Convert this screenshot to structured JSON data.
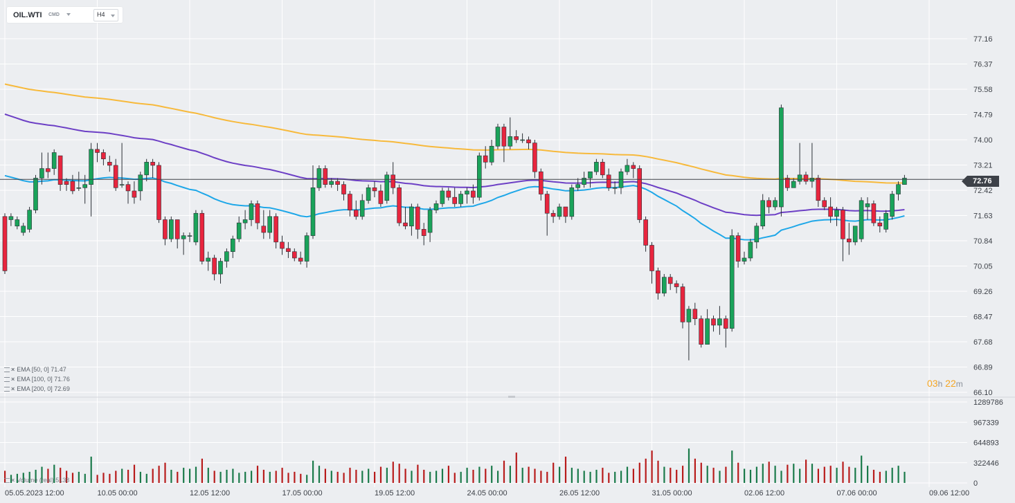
{
  "instrument": {
    "symbol": "OIL.WTI",
    "asset_class": "CMD",
    "timeframe": "H4"
  },
  "last_price": "72.76",
  "countdown": {
    "hours": "03",
    "h": "h",
    "minutes": "22",
    "m": "m"
  },
  "indicators": [
    {
      "label": "EMA [50, 0] 71.47",
      "color": "#1ea7e8",
      "period": 50,
      "value": 71.47
    },
    {
      "label": "EMA [100, 0] 71.76",
      "color": "#6c3fc5",
      "period": 100,
      "value": 71.76
    },
    {
      "label": "EMA [200, 0] 72.69",
      "color": "#f7b93b",
      "period": 200,
      "value": 72.69
    }
  ],
  "volume_label": "Volume (real)  5138",
  "colors": {
    "up": "#1aa35a",
    "down": "#e8253e",
    "ema50": "#1ea7e8",
    "ema100": "#6c3fc5",
    "ema200": "#f7b93b",
    "vol_up": "#1a7a4a",
    "vol_down": "#b81b1b",
    "price_line": "#3d4148"
  },
  "chart_data": {
    "type": "candlestick",
    "x_ticks": [
      "05.05.2023  12:00",
      "10.05  00:00",
      "12.05  12:00",
      "17.05  00:00",
      "19.05  12:00",
      "24.05  00:00",
      "26.05  12:00",
      "31.05  00:00",
      "02.06  12:00",
      "07.06  00:00",
      "09.06  12:00"
    ],
    "x_tick_index": [
      0,
      15,
      30,
      45,
      60,
      75,
      90,
      105,
      120,
      135,
      150
    ],
    "y_ticks": [
      "77.16",
      "76.37",
      "75.58",
      "74.79",
      "74.00",
      "73.21",
      "72.42",
      "71.63",
      "70.84",
      "70.05",
      "69.26",
      "68.47",
      "67.68",
      "66.89",
      "66.10"
    ],
    "ylim": [
      66.1,
      77.16
    ],
    "volume_ticks": [
      "1289786",
      "967339",
      "644893",
      "322446",
      "0"
    ],
    "volume_ylim": [
      0,
      1289786
    ],
    "candles": [
      [
        71.6,
        69.9,
        71.7,
        69.8
      ],
      [
        71.5,
        71.6,
        71.7,
        71.3
      ],
      [
        71.3,
        71.5,
        71.6,
        71.2
      ],
      [
        71.1,
        71.3,
        71.4,
        71.0
      ],
      [
        71.2,
        71.8,
        71.9,
        71.1
      ],
      [
        71.8,
        72.8,
        72.9,
        71.7
      ],
      [
        72.8,
        73.1,
        73.6,
        72.6
      ],
      [
        73.1,
        73.0,
        73.6,
        72.8
      ],
      [
        73.1,
        73.6,
        73.7,
        72.9
      ],
      [
        73.5,
        72.6,
        73.5,
        72.4
      ],
      [
        72.7,
        72.6,
        72.8,
        72.4
      ],
      [
        72.7,
        72.4,
        72.9,
        72.3
      ],
      [
        72.5,
        72.5,
        73.0,
        72.4
      ],
      [
        72.5,
        72.6,
        72.9,
        72.0
      ],
      [
        72.6,
        73.7,
        73.9,
        71.6
      ],
      [
        73.7,
        73.6,
        73.9,
        73.3
      ],
      [
        73.6,
        73.4,
        73.7,
        73.2
      ],
      [
        73.3,
        73.2,
        73.5,
        73.0
      ],
      [
        73.2,
        72.5,
        73.4,
        72.4
      ],
      [
        72.6,
        72.6,
        73.9,
        72.5
      ],
      [
        72.6,
        72.4,
        72.7,
        72.0
      ],
      [
        72.4,
        72.2,
        72.7,
        72.0
      ],
      [
        72.4,
        72.9,
        73.0,
        72.1
      ],
      [
        72.9,
        73.3,
        73.4,
        72.7
      ],
      [
        73.3,
        73.2,
        73.4,
        72.8
      ],
      [
        73.2,
        71.5,
        73.3,
        71.4
      ],
      [
        71.5,
        70.9,
        71.6,
        70.7
      ],
      [
        70.9,
        71.5,
        71.6,
        70.8
      ],
      [
        71.5,
        70.9,
        71.5,
        70.6
      ],
      [
        70.9,
        71.0,
        71.1,
        70.4
      ],
      [
        71.0,
        71.0,
        71.1,
        70.8
      ],
      [
        70.8,
        71.7,
        71.8,
        70.7
      ],
      [
        71.7,
        70.2,
        71.8,
        70.1
      ],
      [
        70.2,
        70.3,
        70.5,
        69.9
      ],
      [
        70.3,
        69.8,
        70.4,
        69.6
      ],
      [
        69.8,
        70.2,
        70.3,
        69.5
      ],
      [
        70.2,
        70.5,
        70.6,
        70.0
      ],
      [
        70.5,
        70.9,
        71.0,
        70.3
      ],
      [
        70.9,
        71.4,
        71.6,
        70.8
      ],
      [
        71.4,
        71.5,
        71.8,
        71.2
      ],
      [
        71.5,
        72.0,
        72.1,
        71.3
      ],
      [
        72.0,
        71.4,
        72.1,
        71.2
      ],
      [
        71.3,
        71.1,
        71.8,
        70.9
      ],
      [
        71.1,
        71.6,
        71.8,
        70.9
      ],
      [
        71.6,
        70.8,
        71.7,
        70.6
      ],
      [
        70.8,
        70.6,
        71.0,
        70.4
      ],
      [
        70.6,
        70.5,
        70.8,
        70.3
      ],
      [
        70.5,
        70.3,
        70.6,
        70.2
      ],
      [
        70.3,
        70.2,
        70.5,
        70.1
      ],
      [
        70.2,
        71.0,
        71.1,
        70.0
      ],
      [
        71.0,
        72.5,
        73.2,
        70.9
      ],
      [
        72.5,
        73.1,
        73.2,
        72.4
      ],
      [
        73.1,
        72.6,
        73.2,
        72.5
      ],
      [
        72.6,
        72.7,
        72.8,
        72.5
      ],
      [
        72.7,
        72.6,
        72.8,
        72.4
      ],
      [
        72.6,
        72.3,
        72.7,
        72.1
      ],
      [
        72.3,
        71.8,
        72.4,
        71.6
      ],
      [
        71.8,
        71.6,
        72.1,
        71.5
      ],
      [
        71.6,
        72.1,
        72.3,
        71.5
      ],
      [
        72.1,
        72.5,
        72.6,
        72.0
      ],
      [
        72.5,
        72.4,
        72.7,
        72.2
      ],
      [
        72.4,
        72.0,
        72.6,
        71.9
      ],
      [
        72.1,
        72.9,
        73.0,
        72.0
      ],
      [
        72.9,
        72.5,
        73.3,
        72.3
      ],
      [
        72.5,
        71.4,
        72.6,
        71.3
      ],
      [
        71.4,
        71.3,
        71.9,
        71.2
      ],
      [
        71.3,
        71.9,
        72.0,
        71.0
      ],
      [
        71.9,
        71.2,
        72.0,
        70.9
      ],
      [
        71.2,
        71.0,
        71.4,
        70.7
      ],
      [
        71.1,
        71.8,
        71.9,
        70.8
      ],
      [
        71.8,
        72.0,
        72.1,
        71.7
      ],
      [
        72.0,
        72.4,
        72.5,
        71.9
      ],
      [
        72.4,
        72.2,
        72.5,
        72.1
      ],
      [
        72.2,
        72.0,
        72.5,
        71.9
      ],
      [
        72.0,
        72.3,
        72.4,
        71.9
      ],
      [
        72.3,
        72.4,
        72.5,
        72.0
      ],
      [
        72.4,
        72.2,
        72.6,
        72.0
      ],
      [
        72.2,
        73.5,
        73.6,
        72.1
      ],
      [
        73.5,
        73.3,
        73.8,
        73.1
      ],
      [
        73.3,
        73.8,
        74.0,
        73.2
      ],
      [
        73.8,
        74.4,
        74.5,
        73.7
      ],
      [
        74.4,
        73.8,
        74.5,
        73.3
      ],
      [
        73.8,
        74.1,
        74.7,
        73.7
      ],
      [
        74.1,
        74.0,
        74.3,
        73.9
      ],
      [
        74.0,
        74.0,
        74.2,
        73.9
      ],
      [
        74.0,
        73.9,
        74.1,
        73.7
      ],
      [
        73.9,
        73.0,
        74.0,
        72.8
      ],
      [
        73.0,
        72.3,
        73.1,
        72.1
      ],
      [
        72.3,
        71.7,
        72.4,
        71.0
      ],
      [
        71.7,
        71.6,
        71.8,
        71.4
      ],
      [
        71.6,
        71.9,
        72.0,
        71.5
      ],
      [
        71.9,
        71.6,
        71.9,
        71.4
      ],
      [
        71.6,
        72.5,
        72.6,
        71.5
      ],
      [
        72.5,
        72.6,
        72.8,
        72.4
      ],
      [
        72.6,
        72.8,
        73.0,
        72.5
      ],
      [
        72.8,
        73.0,
        73.0,
        72.5
      ],
      [
        73.0,
        73.3,
        73.4,
        72.9
      ],
      [
        73.3,
        72.9,
        73.4,
        72.8
      ],
      [
        72.9,
        72.5,
        73.1,
        72.4
      ],
      [
        72.5,
        72.5,
        72.7,
        72.3
      ],
      [
        72.5,
        73.0,
        73.1,
        72.3
      ],
      [
        73.0,
        73.2,
        73.4,
        72.9
      ],
      [
        73.2,
        73.1,
        73.3,
        72.8
      ],
      [
        73.1,
        71.5,
        73.2,
        71.4
      ],
      [
        71.5,
        70.7,
        71.6,
        70.5
      ],
      [
        70.7,
        69.9,
        70.8,
        69.5
      ],
      [
        69.9,
        69.2,
        70.0,
        69.0
      ],
      [
        69.2,
        69.7,
        69.8,
        69.1
      ],
      [
        69.7,
        69.5,
        69.8,
        69.3
      ],
      [
        69.5,
        69.4,
        69.6,
        69.2
      ],
      [
        69.4,
        68.3,
        69.5,
        68.1
      ],
      [
        68.3,
        68.7,
        68.8,
        67.1
      ],
      [
        68.7,
        68.4,
        68.9,
        68.2
      ],
      [
        68.4,
        67.6,
        68.5,
        67.5
      ],
      [
        67.6,
        68.4,
        68.7,
        67.6
      ],
      [
        68.4,
        68.2,
        68.5,
        68.0
      ],
      [
        68.2,
        68.4,
        68.8,
        67.9
      ],
      [
        68.4,
        68.1,
        68.5,
        67.5
      ],
      [
        68.1,
        71.0,
        71.2,
        68.0
      ],
      [
        71.0,
        70.2,
        71.1,
        70.0
      ],
      [
        70.2,
        70.3,
        70.5,
        70.1
      ],
      [
        70.3,
        70.8,
        70.9,
        70.2
      ],
      [
        70.8,
        71.3,
        71.4,
        70.6
      ],
      [
        71.3,
        72.1,
        72.3,
        71.2
      ],
      [
        72.1,
        71.9,
        72.2,
        71.7
      ],
      [
        71.9,
        72.1,
        72.2,
        71.8
      ],
      [
        71.9,
        75.0,
        75.1,
        71.6
      ],
      [
        72.8,
        72.5,
        72.9,
        72.4
      ],
      [
        72.5,
        72.7,
        72.8,
        72.5
      ],
      [
        72.7,
        72.9,
        73.9,
        72.6
      ],
      [
        72.9,
        72.7,
        73.0,
        72.6
      ],
      [
        72.7,
        72.8,
        73.9,
        72.5
      ],
      [
        72.8,
        72.1,
        72.9,
        71.9
      ],
      [
        72.1,
        71.9,
        72.2,
        71.8
      ],
      [
        71.9,
        71.6,
        72.2,
        71.4
      ],
      [
        71.6,
        71.8,
        71.9,
        71.3
      ],
      [
        71.8,
        70.9,
        71.9,
        70.2
      ],
      [
        70.9,
        70.8,
        71.4,
        70.4
      ],
      [
        70.8,
        71.3,
        71.3,
        70.7
      ],
      [
        70.9,
        72.1,
        72.2,
        70.8
      ],
      [
        71.9,
        72.0,
        72.2,
        71.5
      ],
      [
        72.0,
        71.4,
        72.1,
        71.3
      ],
      [
        71.4,
        71.3,
        71.6,
        71.1
      ],
      [
        71.2,
        71.7,
        71.8,
        71.1
      ],
      [
        71.6,
        72.3,
        72.4,
        71.5
      ],
      [
        72.3,
        72.6,
        72.7,
        72.1
      ],
      [
        72.6,
        72.8,
        72.9,
        72.6
      ]
    ],
    "volume": [
      60,
      40,
      45,
      50,
      55,
      65,
      80,
      70,
      90,
      75,
      60,
      50,
      55,
      45,
      130,
      40,
      50,
      45,
      60,
      70,
      65,
      90,
      55,
      45,
      70,
      85,
      100,
      65,
      55,
      75,
      70,
      80,
      120,
      75,
      60,
      55,
      65,
      70,
      50,
      55,
      60,
      85,
      65,
      55,
      60,
      75,
      50,
      55,
      45,
      40,
      110,
      85,
      70,
      60,
      55,
      50,
      75,
      65,
      60,
      70,
      55,
      80,
      75,
      105,
      95,
      70,
      60,
      90,
      65,
      55,
      60,
      70,
      85,
      50,
      55,
      75,
      65,
      80,
      70,
      85,
      60,
      110,
      85,
      150,
      75,
      80,
      70,
      60,
      55,
      100,
      80,
      130,
      75,
      70,
      60,
      55,
      65,
      75,
      50,
      55,
      60,
      80,
      70,
      100,
      120,
      160,
      110,
      80,
      75,
      65,
      85,
      170,
      120,
      100,
      85,
      75,
      60,
      80,
      160,
      100,
      70,
      65,
      80,
      95,
      105,
      85,
      60,
      90,
      95,
      70,
      115,
      95,
      70,
      80,
      85,
      75,
      105,
      80,
      75,
      135,
      85,
      65,
      55,
      60,
      75,
      85,
      55
    ]
  }
}
